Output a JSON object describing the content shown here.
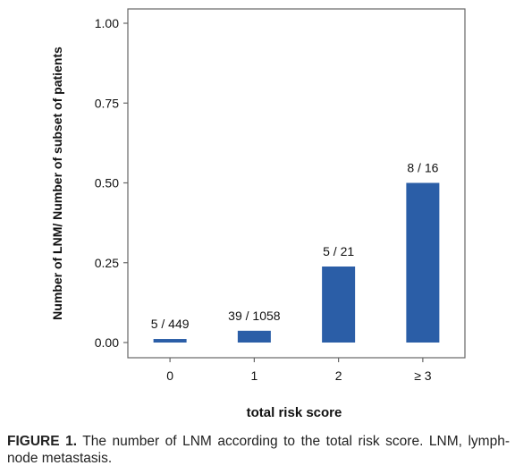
{
  "chart_data": {
    "type": "bar",
    "categories": [
      "0",
      "1",
      "2",
      "≥ 3"
    ],
    "values": [
      0.0111,
      0.0369,
      0.2381,
      0.5
    ],
    "bar_labels": [
      "5 / 449",
      "39 / 1058",
      "5 / 21",
      "8 / 16"
    ],
    "title": "",
    "xlabel": "total risk score",
    "ylabel": "Number of LNM/ Number of subset of patients",
    "ylim": [
      0,
      1.0
    ],
    "yticks": [
      "0.00",
      "0.25",
      "0.50",
      "0.75",
      "1.00"
    ],
    "bar_color": "#2b5ea7",
    "grid": false,
    "legend": "none"
  },
  "caption": {
    "label": "FIGURE 1.",
    "text": "The number of LNM according to the total risk score. LNM, lymph-node metastasis."
  }
}
